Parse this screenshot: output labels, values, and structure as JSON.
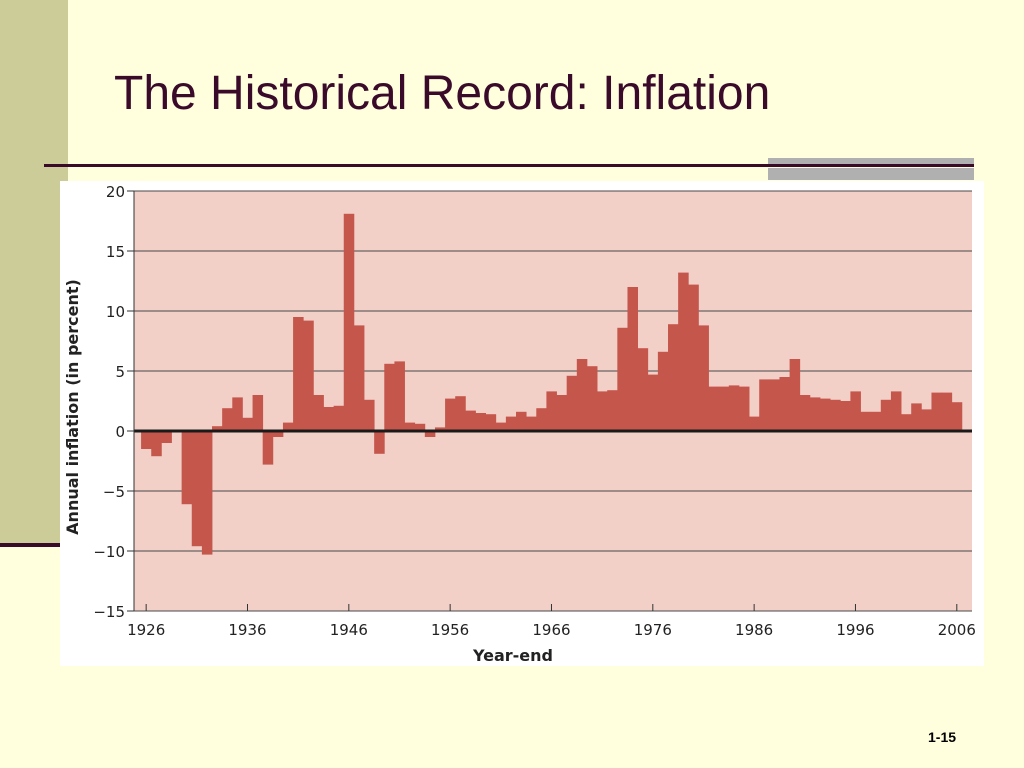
{
  "slide": {
    "title": "The Historical Record: Inflation",
    "slide_number": "1-15"
  },
  "colors": {
    "background": "#FFFFDD",
    "left_band": "#CCCC99",
    "rule": "#3A0A2A",
    "plot_bg": "#F2CFC7",
    "bar": "#C5564C",
    "zero_line": "#1A1A1A",
    "grid": "#4A4A4A"
  },
  "chart_data": {
    "type": "bar",
    "xlabel": "Year-end",
    "ylabel": "Annual inflation (in percent)",
    "ylim": [
      -15,
      20
    ],
    "yticks": [
      20,
      15,
      10,
      5,
      0,
      -5,
      -10,
      -15
    ],
    "ytick_labels": [
      "20",
      "15",
      "10",
      "5",
      "0",
      "−5",
      "−10",
      "−15"
    ],
    "xlim": [
      1924.8,
      2007.5
    ],
    "xticks": [
      1926,
      1936,
      1946,
      1956,
      1966,
      1976,
      1986,
      1996,
      2006
    ],
    "xtick_labels": [
      "1926",
      "1936",
      "1946",
      "1956",
      "1966",
      "1976",
      "1986",
      "1996",
      "2006"
    ],
    "grid": "horizontal",
    "x": [
      1926,
      1927,
      1928,
      1929,
      1930,
      1931,
      1932,
      1933,
      1934,
      1935,
      1936,
      1937,
      1938,
      1939,
      1940,
      1941,
      1942,
      1943,
      1944,
      1945,
      1946,
      1947,
      1948,
      1949,
      1950,
      1951,
      1952,
      1953,
      1954,
      1955,
      1956,
      1957,
      1958,
      1959,
      1960,
      1961,
      1962,
      1963,
      1964,
      1965,
      1966,
      1967,
      1968,
      1969,
      1970,
      1971,
      1972,
      1973,
      1974,
      1975,
      1976,
      1977,
      1978,
      1979,
      1980,
      1981,
      1982,
      1983,
      1984,
      1985,
      1986,
      1987,
      1988,
      1989,
      1990,
      1991,
      1992,
      1993,
      1994,
      1995,
      1996,
      1997,
      1998,
      1999,
      2000,
      2001,
      2002,
      2003,
      2004,
      2005,
      2006
    ],
    "values": [
      -1.5,
      -2.1,
      -1.0,
      0.1,
      -6.1,
      -9.6,
      -10.3,
      0.4,
      1.9,
      2.8,
      1.1,
      3.0,
      -2.8,
      -0.5,
      0.7,
      9.5,
      9.2,
      3.0,
      2.0,
      2.1,
      18.1,
      8.8,
      2.6,
      -1.9,
      5.6,
      5.8,
      0.7,
      0.6,
      -0.5,
      0.3,
      2.7,
      2.9,
      1.7,
      1.5,
      1.4,
      0.7,
      1.2,
      1.6,
      1.2,
      1.9,
      3.3,
      3.0,
      4.6,
      6.0,
      5.4,
      3.3,
      3.4,
      8.6,
      12.0,
      6.9,
      4.7,
      6.6,
      8.9,
      13.2,
      12.2,
      8.8,
      3.7,
      3.7,
      3.8,
      3.7,
      1.2,
      4.3,
      4.3,
      4.5,
      6.0,
      3.0,
      2.8,
      2.7,
      2.6,
      2.5,
      3.3,
      1.6,
      1.6,
      2.6,
      3.3,
      1.4,
      2.3,
      1.8,
      3.2,
      3.2,
      2.4
    ]
  }
}
